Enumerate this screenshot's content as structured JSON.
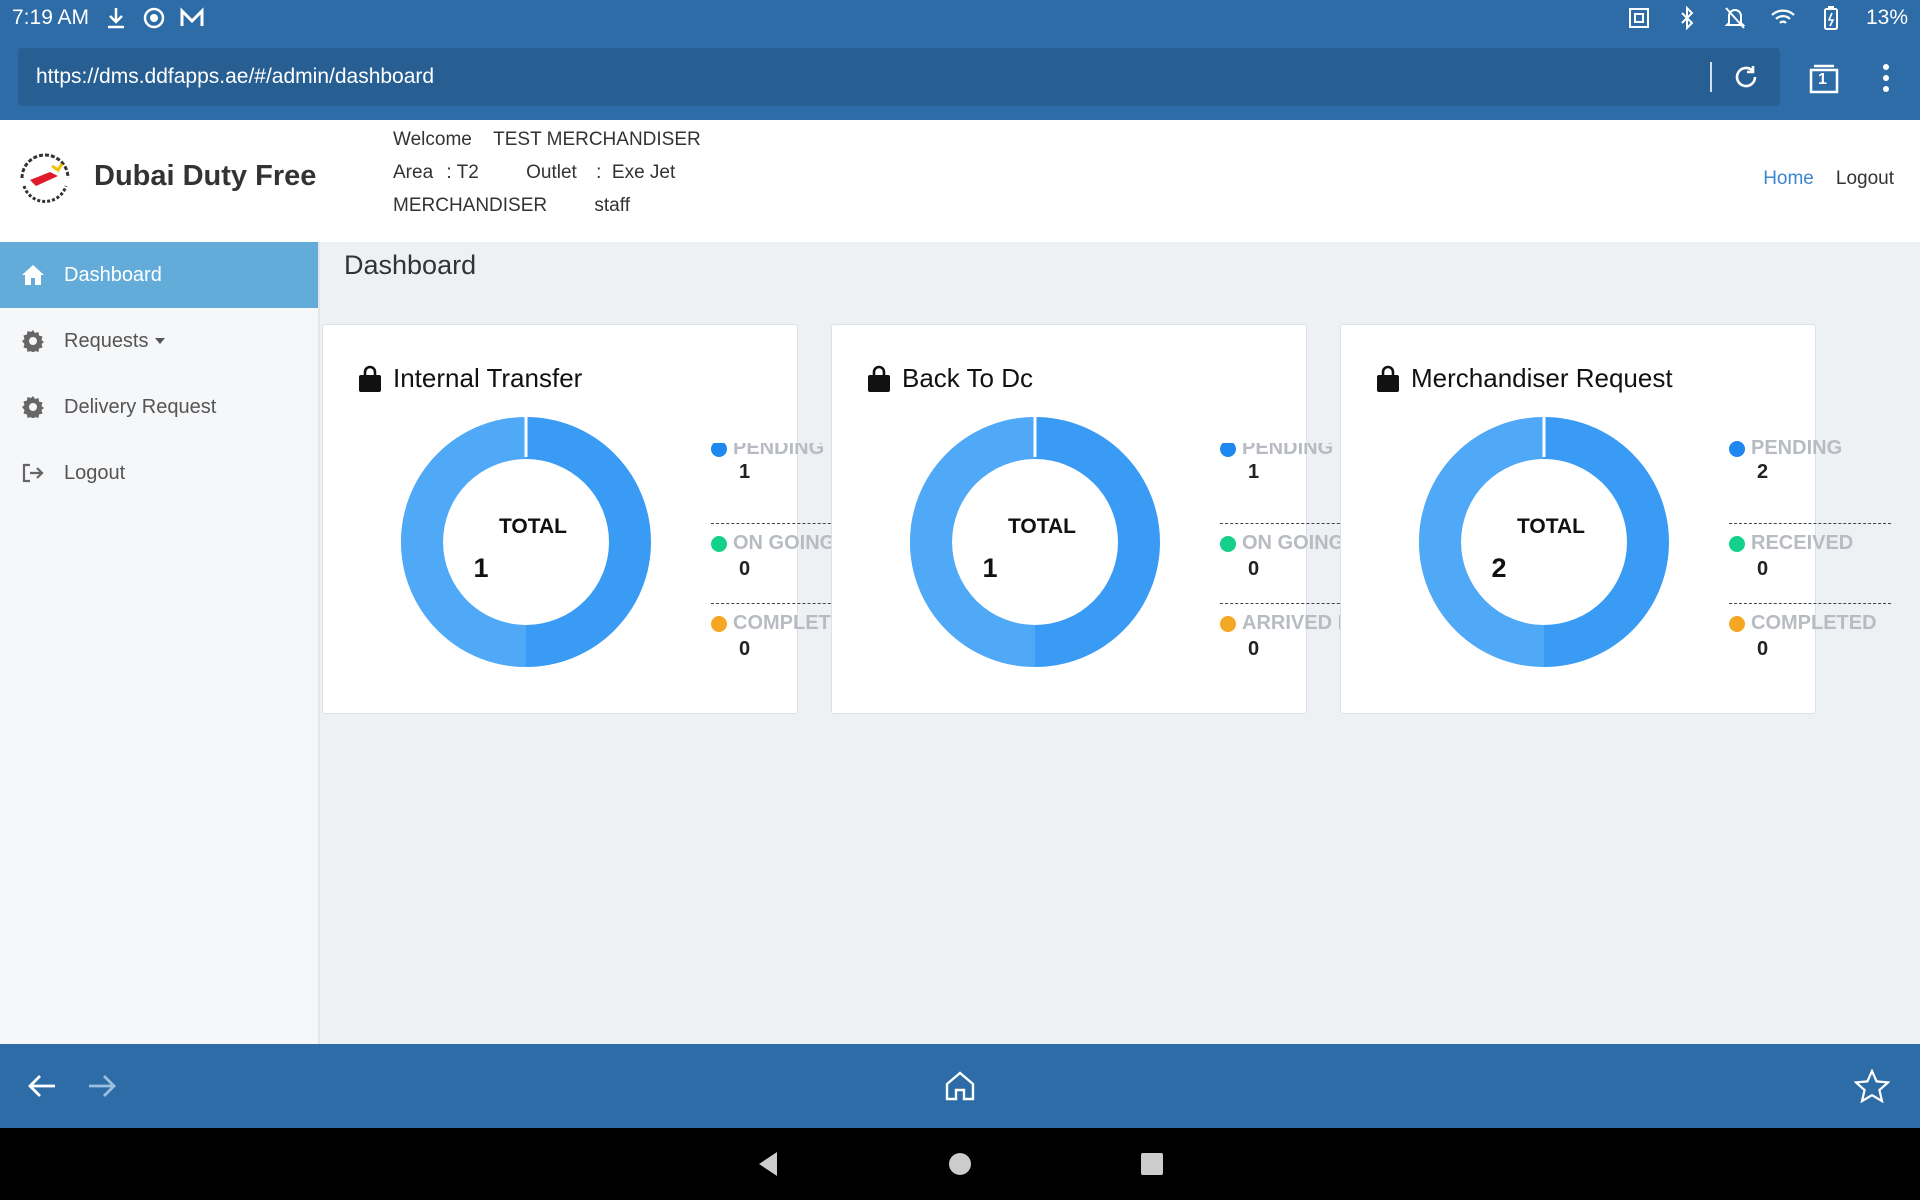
{
  "status_bar": {
    "time": "7:19 AM",
    "battery": "13%",
    "left_icons": [
      "download-icon",
      "record-icon",
      "mail-app-icon"
    ],
    "right_icons": [
      "nfc-icon",
      "bluetooth-icon",
      "mute-icon",
      "wifi-icon",
      "battery-icon"
    ]
  },
  "browser": {
    "url": "https://dms.ddfapps.ae/#/admin/dashboard",
    "tab_count": "1"
  },
  "header": {
    "brand": "Dubai Duty Free",
    "welcome_label": "Welcome",
    "user_name": "TEST MERCHANDISER",
    "area_label": "Area",
    "area_value": ": T2",
    "outlet_label": "Outlet",
    "outlet_value": ":  Exe Jet",
    "role": "MERCHANDISER",
    "user_type": "staff",
    "nav": {
      "home": "Home",
      "logout": "Logout"
    }
  },
  "sidebar": {
    "items": [
      {
        "label": "Dashboard",
        "icon": "home-icon",
        "active": true
      },
      {
        "label": "Requests",
        "icon": "gear-icon",
        "active": false
      },
      {
        "label": "Delivery Request",
        "icon": "gear-icon",
        "active": false
      },
      {
        "label": "Logout",
        "icon": "sign-out-icon",
        "active": false
      }
    ]
  },
  "main": {
    "title": "Dashboard",
    "total_label": "TOTAL",
    "cards": [
      {
        "title": "Internal Transfer",
        "total": "1",
        "legend": [
          {
            "label": "PENDING",
            "value": "1",
            "color": "#1e88f0"
          },
          {
            "label": "ON GOING",
            "value": "0",
            "color": "#13d18a"
          },
          {
            "label": "COMPLET",
            "value": "0",
            "color": "#f5a623"
          }
        ]
      },
      {
        "title": "Back To Dc",
        "total": "1",
        "legend": [
          {
            "label": "PENDING",
            "value": "1",
            "color": "#1e88f0"
          },
          {
            "label": "ON GOING",
            "value": "0",
            "color": "#13d18a"
          },
          {
            "label": "ARRIVED I",
            "value": "0",
            "color": "#f5a623"
          }
        ]
      },
      {
        "title": "Merchandiser Request",
        "total": "2",
        "legend": [
          {
            "label": "PENDING",
            "value": "2",
            "color": "#1e88f0"
          },
          {
            "label": "RECEIVED",
            "value": "0",
            "color": "#13d18a"
          },
          {
            "label": "COMPLETED",
            "value": "0",
            "color": "#f5a623"
          }
        ]
      }
    ]
  },
  "colors": {
    "browser_chrome": "#2d6ca6",
    "sidebar_active": "#63acd9",
    "donut": "#3a9bf5",
    "link": "#3a87d0"
  }
}
